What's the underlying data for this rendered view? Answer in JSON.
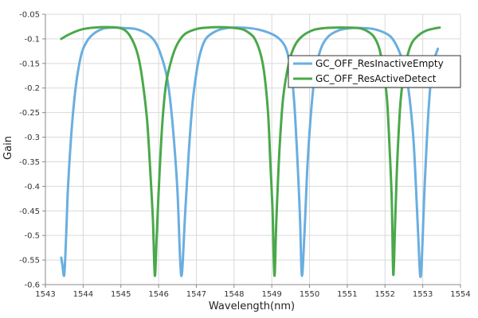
{
  "chart_data": {
    "type": "line",
    "title": "",
    "xlabel": "Wavelength(nm)",
    "ylabel": "Gain",
    "xlim": [
      1543,
      1554
    ],
    "ylim": [
      -0.6,
      -0.05
    ],
    "grid": true,
    "legend_position": "right",
    "x_ticks": [
      "1543",
      "1544",
      "1545",
      "1546",
      "1547",
      "1548",
      "1549",
      "1550",
      "1551",
      "1552",
      "1553",
      "1554"
    ],
    "y_ticks": [
      "-0.05",
      "-0.1",
      "-0.15",
      "-0.2",
      "-0.25",
      "-0.3",
      "-0.35",
      "-0.4",
      "-0.45",
      "-0.5",
      "-0.55",
      "-0.6"
    ],
    "series": [
      {
        "name": "GC_OFF_ResInactiveEmpty",
        "color": "#6aaee0",
        "x": [
          1543.42,
          1543.45,
          1543.5,
          1543.55,
          1543.6,
          1543.7,
          1543.8,
          1543.9,
          1544.0,
          1544.2,
          1544.5,
          1544.8,
          1545.1,
          1545.4,
          1545.7,
          1545.9,
          1546.05,
          1546.2,
          1546.3,
          1546.4,
          1546.5,
          1546.6,
          1546.7,
          1546.8,
          1546.9,
          1547.0,
          1547.1,
          1547.25,
          1547.5,
          1547.8,
          1548.1,
          1548.4,
          1548.7,
          1549.0,
          1549.2,
          1549.35,
          1549.45,
          1549.55,
          1549.62,
          1549.7,
          1549.75,
          1549.8,
          1549.88,
          1549.95,
          1550.05,
          1550.15,
          1550.3,
          1550.5,
          1550.8,
          1551.1,
          1551.4,
          1551.7,
          1552.0,
          1552.2,
          1552.4,
          1552.55,
          1552.65,
          1552.75,
          1552.82,
          1552.88,
          1552.95,
          1553.05,
          1553.15,
          1553.25,
          1553.4
        ],
        "y": [
          -0.545,
          -0.56,
          -0.58,
          -0.5,
          -0.4,
          -0.28,
          -0.2,
          -0.15,
          -0.12,
          -0.095,
          -0.08,
          -0.077,
          -0.078,
          -0.08,
          -0.09,
          -0.105,
          -0.13,
          -0.17,
          -0.22,
          -0.3,
          -0.41,
          -0.582,
          -0.46,
          -0.33,
          -0.23,
          -0.17,
          -0.13,
          -0.1,
          -0.085,
          -0.078,
          -0.077,
          -0.078,
          -0.082,
          -0.09,
          -0.1,
          -0.115,
          -0.14,
          -0.19,
          -0.26,
          -0.38,
          -0.47,
          -0.582,
          -0.47,
          -0.35,
          -0.24,
          -0.17,
          -0.12,
          -0.095,
          -0.082,
          -0.078,
          -0.078,
          -0.08,
          -0.088,
          -0.1,
          -0.13,
          -0.17,
          -0.22,
          -0.3,
          -0.4,
          -0.5,
          -0.582,
          -0.4,
          -0.25,
          -0.16,
          -0.12
        ]
      },
      {
        "name": "GC_OFF_ResActiveDetect",
        "color": "#4aa84a",
        "x": [
          1543.42,
          1543.6,
          1543.8,
          1544.0,
          1544.3,
          1544.6,
          1544.9,
          1545.1,
          1545.25,
          1545.4,
          1545.5,
          1545.6,
          1545.7,
          1545.78,
          1545.85,
          1545.9,
          1545.95,
          1546.02,
          1546.1,
          1546.2,
          1546.35,
          1546.5,
          1546.7,
          1547.0,
          1547.3,
          1547.6,
          1547.9,
          1548.2,
          1548.4,
          1548.55,
          1548.7,
          1548.8,
          1548.9,
          1548.96,
          1549.02,
          1549.07,
          1549.12,
          1549.2,
          1549.3,
          1549.45,
          1549.6,
          1549.8,
          1550.1,
          1550.4,
          1550.7,
          1551.0,
          1551.3,
          1551.5,
          1551.7,
          1551.85,
          1551.95,
          1552.05,
          1552.12,
          1552.18,
          1552.22,
          1552.27,
          1552.33,
          1552.42,
          1552.55,
          1552.7,
          1552.9,
          1553.1,
          1553.3,
          1553.45
        ],
        "y": [
          -0.1,
          -0.092,
          -0.085,
          -0.08,
          -0.077,
          -0.076,
          -0.077,
          -0.082,
          -0.095,
          -0.12,
          -0.15,
          -0.2,
          -0.27,
          -0.37,
          -0.47,
          -0.582,
          -0.5,
          -0.38,
          -0.27,
          -0.19,
          -0.14,
          -0.11,
          -0.09,
          -0.08,
          -0.077,
          -0.076,
          -0.077,
          -0.08,
          -0.088,
          -0.1,
          -0.13,
          -0.17,
          -0.25,
          -0.35,
          -0.45,
          -0.582,
          -0.47,
          -0.33,
          -0.22,
          -0.15,
          -0.115,
          -0.095,
          -0.082,
          -0.078,
          -0.077,
          -0.077,
          -0.078,
          -0.083,
          -0.095,
          -0.12,
          -0.16,
          -0.22,
          -0.32,
          -0.43,
          -0.58,
          -0.47,
          -0.34,
          -0.22,
          -0.15,
          -0.11,
          -0.092,
          -0.083,
          -0.079,
          -0.077
        ]
      }
    ]
  }
}
